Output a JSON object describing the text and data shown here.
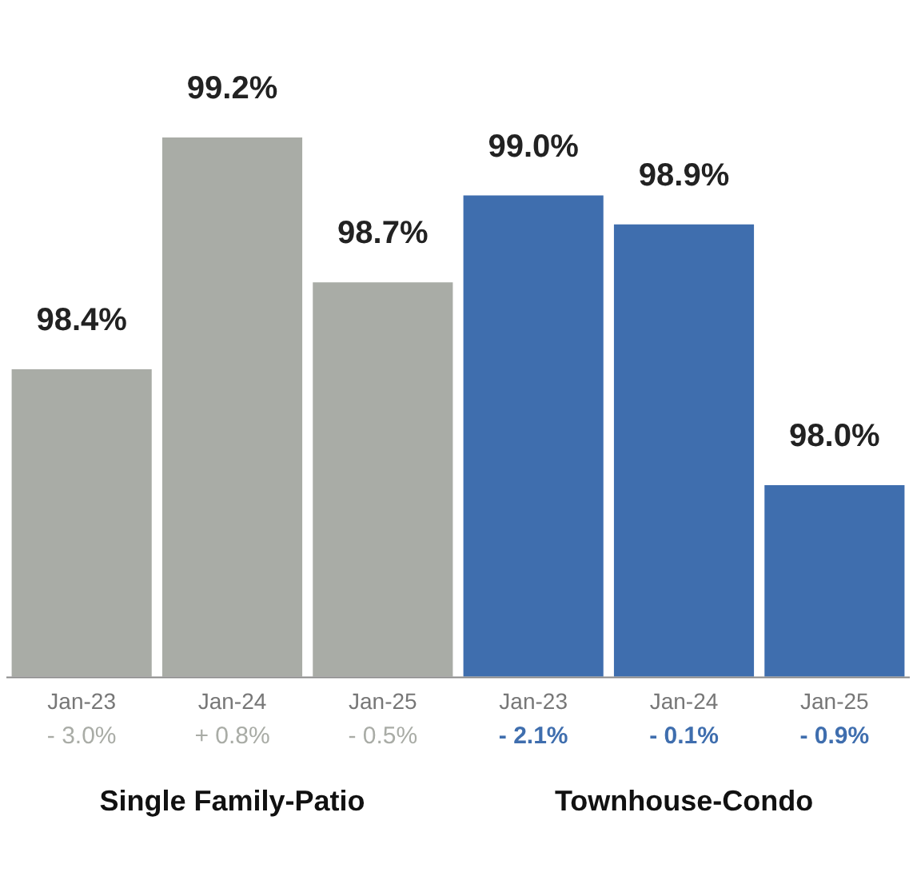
{
  "chart_data": {
    "type": "bar",
    "categories": [
      "Jan-23",
      "Jan-24",
      "Jan-25",
      "Jan-23",
      "Jan-24",
      "Jan-25"
    ],
    "series": [
      {
        "name": "Single Family-Patio",
        "color": "#a9aca6",
        "values": [
          98.4,
          99.2,
          98.7,
          null,
          null,
          null
        ],
        "value_labels": [
          "98.4%",
          "99.2%",
          "98.7%",
          null,
          null,
          null
        ]
      },
      {
        "name": "Townhouse-Condo",
        "color": "#3f6eae",
        "values": [
          null,
          null,
          null,
          99.0,
          98.9,
          98.0
        ],
        "value_labels": [
          null,
          null,
          null,
          "99.0%",
          "98.9%",
          "98.0%"
        ]
      }
    ],
    "annotations": [
      "- 3.0%",
      "+ 0.8%",
      "- 0.5%",
      "- 2.1%",
      "- 0.1%",
      "- 0.9%"
    ],
    "tick_labels": "x",
    "grid": false,
    "legend": false
  }
}
